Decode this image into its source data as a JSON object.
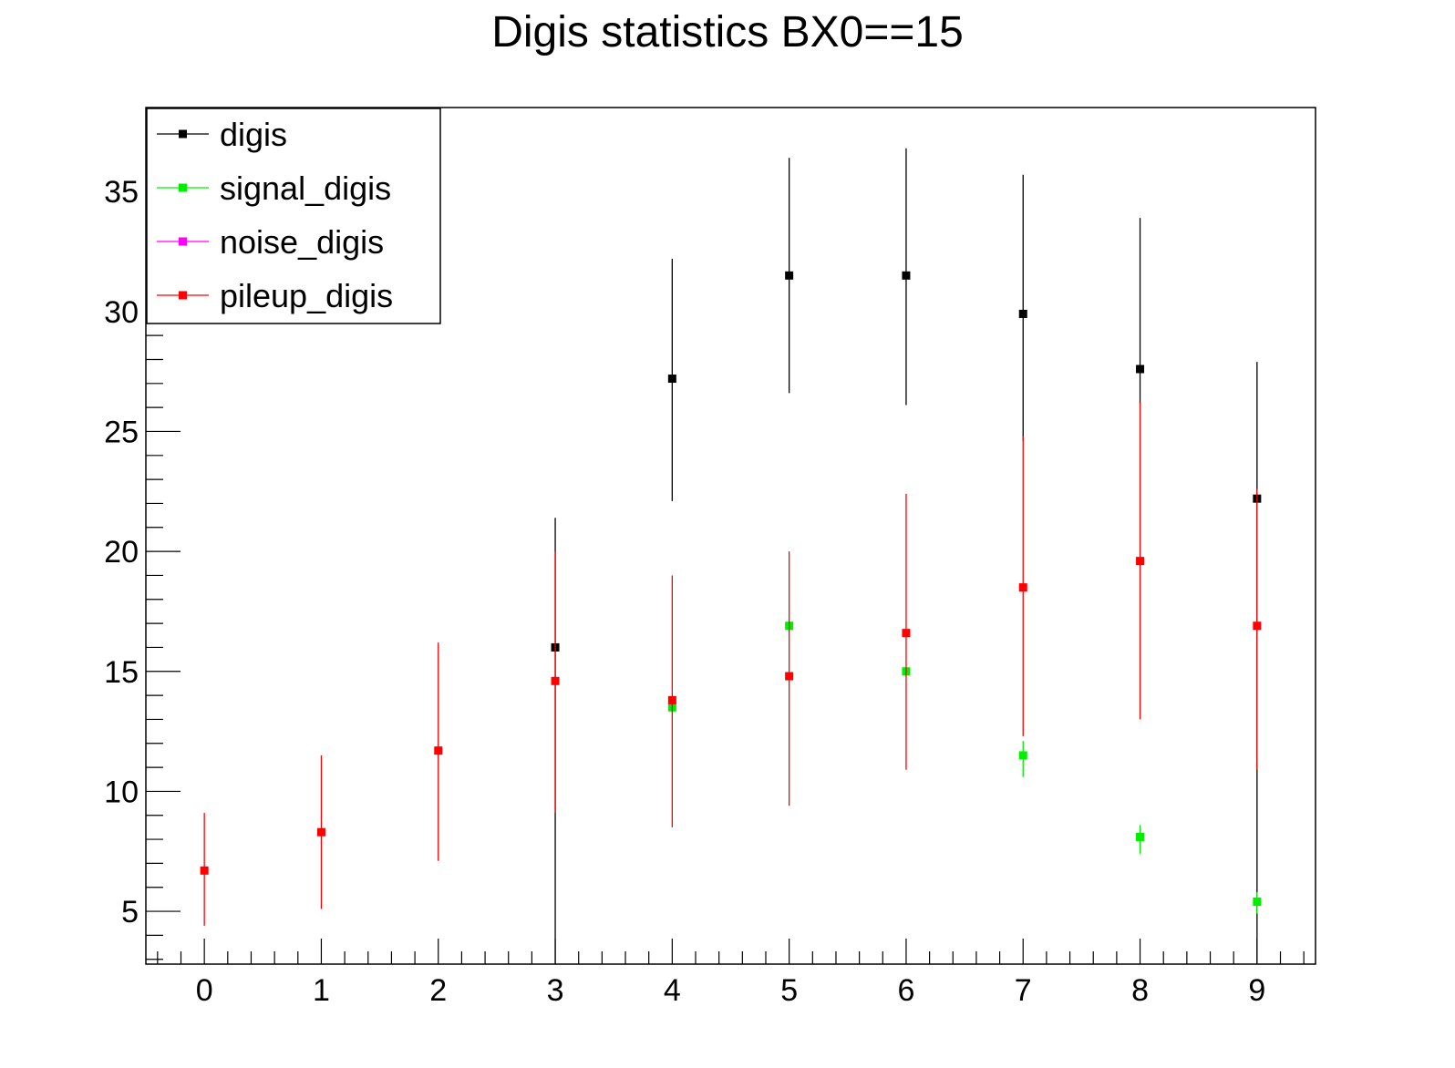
{
  "chart_data": {
    "type": "scatter",
    "title": "Digis statistics BX0==15",
    "xlabel": "",
    "ylabel": "",
    "xlim": [
      -0.5,
      9.5
    ],
    "ylim": [
      2.8,
      38.5
    ],
    "x_ticks": [
      0,
      1,
      2,
      3,
      4,
      5,
      6,
      7,
      8,
      9
    ],
    "y_ticks": [
      5,
      10,
      15,
      20,
      25,
      30,
      35
    ],
    "legend_position": "top-left",
    "grid": false,
    "series": [
      {
        "name": "digis",
        "color": "#000000",
        "points": [
          {
            "x": 3,
            "y": 16.0,
            "lo": 0,
            "hi": 21.4
          },
          {
            "x": 4,
            "y": 27.2,
            "lo": 22.1,
            "hi": 32.2
          },
          {
            "x": 5,
            "y": 31.5,
            "lo": 26.6,
            "hi": 36.4
          },
          {
            "x": 6,
            "y": 31.5,
            "lo": 26.1,
            "hi": 36.8
          },
          {
            "x": 7,
            "y": 29.9,
            "lo": 24.6,
            "hi": 35.7
          },
          {
            "x": 8,
            "y": 27.6,
            "lo": 26.1,
            "hi": 33.9
          },
          {
            "x": 9,
            "y": 22.2,
            "lo": 0,
            "hi": 27.9
          }
        ]
      },
      {
        "name": "signal_digis",
        "color": "#00ee00",
        "points": [
          {
            "x": 4,
            "y": 13.5,
            "lo": 13.3,
            "hi": 13.7
          },
          {
            "x": 5,
            "y": 16.9,
            "lo": 16.7,
            "hi": 17.0
          },
          {
            "x": 6,
            "y": 15.0,
            "lo": 14.8,
            "hi": 15.1
          },
          {
            "x": 7,
            "y": 11.5,
            "lo": 10.6,
            "hi": 12.1
          },
          {
            "x": 8,
            "y": 8.1,
            "lo": 7.4,
            "hi": 8.6
          },
          {
            "x": 9,
            "y": 5.4,
            "lo": 4.9,
            "hi": 5.8
          }
        ]
      },
      {
        "name": "noise_digis",
        "color": "#ff00ff",
        "points": []
      },
      {
        "name": "pileup_digis",
        "color": "#ff0000",
        "points": [
          {
            "x": 0,
            "y": 6.7,
            "lo": 4.4,
            "hi": 9.1
          },
          {
            "x": 1,
            "y": 8.3,
            "lo": 5.1,
            "hi": 11.5
          },
          {
            "x": 2,
            "y": 11.7,
            "lo": 7.1,
            "hi": 16.2
          },
          {
            "x": 3,
            "y": 14.6,
            "lo": 9.1,
            "hi": 20.0
          },
          {
            "x": 4,
            "y": 13.8,
            "lo": 8.5,
            "hi": 19.0
          },
          {
            "x": 5,
            "y": 14.8,
            "lo": 9.4,
            "hi": 20.0
          },
          {
            "x": 6,
            "y": 16.6,
            "lo": 10.9,
            "hi": 22.4
          },
          {
            "x": 7,
            "y": 18.5,
            "lo": 12.3,
            "hi": 24.8
          },
          {
            "x": 8,
            "y": 19.6,
            "lo": 13.0,
            "hi": 26.2
          },
          {
            "x": 9,
            "y": 16.9,
            "lo": 10.9,
            "hi": 22.6
          }
        ]
      }
    ]
  }
}
